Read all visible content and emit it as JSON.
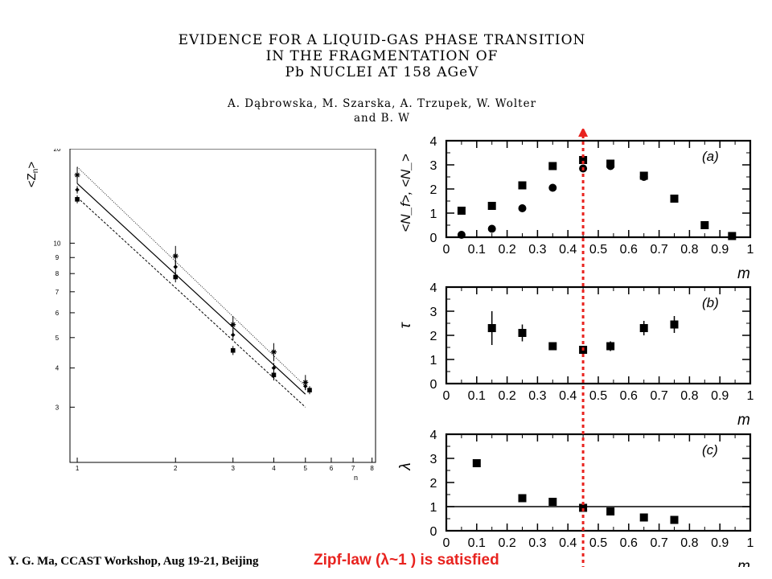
{
  "paper": {
    "title_lines": [
      "EVIDENCE FOR A LIQUID-GAS PHASE TRANSITION",
      "IN THE FRAGMENTATION OF",
      "Pb NUCLEI AT 158 AGeV"
    ],
    "author_lines": [
      "A. Dąbrowska, M. Szarska, A. Trzupek, W. Wolter",
      "and B. W"
    ]
  },
  "footer": {
    "credit": "Y. G. Ma, CCAST Workshop, Aug 19-21, Beijing",
    "note_prefix": "Zipf-law (",
    "note_symbol": "λ",
    "note_suffix": "~1 ) is satisfied",
    "note_color": "#e8231f"
  },
  "chart_data": [
    {
      "type": "scatter",
      "xlabel": "n",
      "ylabel": "<Z_n>",
      "xscale": "log",
      "yscale": "log",
      "xlim": [
        0.95,
        8.2
      ],
      "ylim": [
        2.0,
        20
      ],
      "xticks": [
        1,
        2,
        3,
        4,
        5,
        6,
        7,
        8
      ],
      "yticks": [
        3,
        4,
        5,
        6,
        7,
        8,
        9,
        10,
        20
      ],
      "series": [
        {
          "marker": "star",
          "x": [
            1,
            2,
            3,
            4,
            5
          ],
          "y": [
            16.5,
            9.1,
            5.5,
            4.5,
            3.6
          ],
          "err": [
            1.0,
            0.7,
            0.35,
            0.3,
            0.2
          ]
        },
        {
          "marker": "diamond",
          "x": [
            1,
            2,
            3,
            4,
            5
          ],
          "y": [
            14.8,
            8.4,
            5.1,
            4.0,
            3.5
          ],
          "err": [
            0.4,
            0.4,
            0.2,
            0.15,
            0.1
          ]
        },
        {
          "marker": "square",
          "x": [
            1,
            2,
            3,
            4,
            5.15
          ],
          "y": [
            13.8,
            7.8,
            4.55,
            3.8,
            3.4
          ],
          "err": [
            0.4,
            0.3,
            0.15,
            0.15,
            0.1
          ]
        }
      ],
      "lines": [
        {
          "style": "dotted",
          "x": [
            1,
            5
          ],
          "y": [
            17.5,
            3.5
          ]
        },
        {
          "style": "solid",
          "x": [
            1,
            5
          ],
          "y": [
            15.5,
            3.3
          ]
        },
        {
          "style": "dashed",
          "x": [
            1,
            5
          ],
          "y": [
            14.0,
            3.0
          ]
        }
      ]
    },
    {
      "type": "scatter",
      "panel_label": "(a)",
      "xlabel": "m",
      "ylabel": "<N_f>, <N_>",
      "xlim": [
        0,
        1
      ],
      "ylim": [
        0,
        4
      ],
      "xticks": [
        0,
        0.1,
        0.2,
        0.3,
        0.4,
        0.5,
        0.6,
        0.7,
        0.8,
        0.9,
        1
      ],
      "yticks": [
        0,
        1,
        2,
        3,
        4
      ],
      "series": [
        {
          "marker": "square",
          "x": [
            0.05,
            0.15,
            0.25,
            0.35,
            0.45,
            0.54,
            0.65,
            0.75,
            0.85,
            0.94
          ],
          "y": [
            1.1,
            1.3,
            2.15,
            2.95,
            3.2,
            3.05,
            2.55,
            1.6,
            0.5,
            0.05
          ]
        },
        {
          "marker": "circle",
          "x": [
            0.05,
            0.15,
            0.25,
            0.35,
            0.45,
            0.54,
            0.65
          ],
          "y": [
            0.1,
            0.35,
            1.2,
            2.05,
            2.85,
            2.95,
            2.5
          ]
        }
      ]
    },
    {
      "type": "scatter",
      "panel_label": "(b)",
      "xlabel": "m",
      "ylabel": "τ",
      "xlim": [
        0,
        1
      ],
      "ylim": [
        0,
        4
      ],
      "xticks": [
        0,
        0.1,
        0.2,
        0.3,
        0.4,
        0.5,
        0.6,
        0.7,
        0.8,
        0.9,
        1
      ],
      "yticks": [
        0,
        1,
        2,
        3,
        4
      ],
      "series": [
        {
          "marker": "square",
          "x": [
            0.15,
            0.25,
            0.35,
            0.45,
            0.54,
            0.65,
            0.75
          ],
          "y": [
            2.3,
            2.1,
            1.55,
            1.4,
            1.55,
            2.3,
            2.45
          ],
          "err": [
            0.7,
            0.35,
            0.15,
            0.15,
            0.2,
            0.3,
            0.35
          ]
        }
      ]
    },
    {
      "type": "scatter",
      "panel_label": "(c)",
      "xlabel": "m",
      "ylabel": "λ",
      "xlim": [
        0,
        1
      ],
      "ylim": [
        0,
        4
      ],
      "xticks": [
        0,
        0.1,
        0.2,
        0.3,
        0.4,
        0.5,
        0.6,
        0.7,
        0.8,
        0.9,
        1
      ],
      "yticks": [
        0,
        1,
        2,
        3,
        4
      ],
      "hline": 1,
      "series": [
        {
          "marker": "square",
          "x": [
            0.1,
            0.25,
            0.35,
            0.45,
            0.54,
            0.65,
            0.75
          ],
          "y": [
            2.8,
            1.35,
            1.2,
            0.95,
            0.8,
            0.55,
            0.45
          ]
        }
      ]
    }
  ],
  "marker_line": {
    "m": 0.45,
    "color": "#e8231f"
  }
}
